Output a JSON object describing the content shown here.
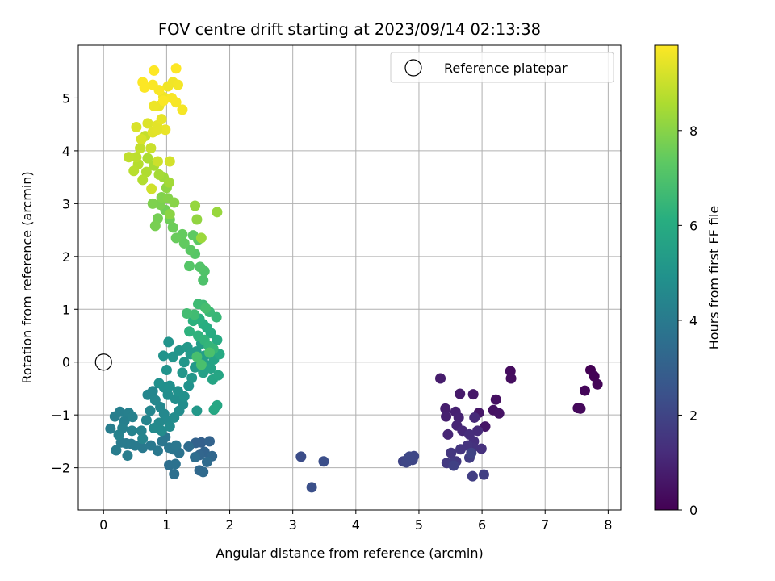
{
  "chart_data": {
    "type": "scatter",
    "title": "FOV centre drift starting at 2023/09/14 02:13:38",
    "xlabel": "Angular distance from reference (arcmin)",
    "ylabel": "Rotation from reference (arcmin)",
    "xlim": [
      -0.4,
      8.2
    ],
    "ylim": [
      -2.8,
      6.0
    ],
    "xticks": [
      0,
      1,
      2,
      3,
      4,
      5,
      6,
      7,
      8
    ],
    "yticks": [
      -2,
      -1,
      0,
      1,
      2,
      3,
      4,
      5
    ],
    "grid": true,
    "legend": {
      "position": "top-right",
      "label": "Reference platepar"
    },
    "reference_point": {
      "x": 0,
      "y": 0
    },
    "colorbar": {
      "label": "Hours from first FF file",
      "colormap": "viridis",
      "range": [
        0,
        9.8
      ],
      "ticks": [
        0,
        2,
        4,
        6,
        8
      ]
    },
    "series": [
      {
        "points": [
          [
            7.72,
            -0.15,
            0.0
          ],
          [
            7.78,
            -0.27,
            0.05
          ],
          [
            7.83,
            -0.42,
            0.1
          ],
          [
            7.63,
            -0.54,
            0.15
          ],
          [
            7.52,
            -0.87,
            0.2
          ],
          [
            7.56,
            -0.88,
            0.22
          ],
          [
            6.45,
            -0.17,
            0.3
          ],
          [
            6.46,
            -0.31,
            0.35
          ],
          [
            6.22,
            -0.71,
            0.4
          ],
          [
            6.18,
            -0.91,
            0.45
          ],
          [
            6.27,
            -0.97,
            0.5
          ],
          [
            6.05,
            -1.22,
            0.55
          ],
          [
            5.95,
            -0.96,
            0.6
          ],
          [
            5.86,
            -0.61,
            0.65
          ],
          [
            5.65,
            -0.6,
            0.7
          ],
          [
            5.34,
            -0.31,
            0.75
          ],
          [
            5.42,
            -0.88,
            0.8
          ],
          [
            5.43,
            -1.03,
            0.85
          ],
          [
            5.58,
            -0.94,
            0.9
          ],
          [
            5.63,
            -1.05,
            0.95
          ],
          [
            5.6,
            -1.2,
            1.0
          ],
          [
            5.46,
            -1.37,
            1.05
          ],
          [
            5.69,
            -1.3,
            1.1
          ],
          [
            5.88,
            -1.05,
            1.15
          ],
          [
            5.93,
            -1.3,
            1.2
          ],
          [
            5.8,
            -1.37,
            1.25
          ],
          [
            5.87,
            -1.5,
            1.3
          ],
          [
            5.99,
            -1.64,
            1.35
          ],
          [
            5.85,
            -1.62,
            1.4
          ],
          [
            5.77,
            -1.58,
            1.45
          ],
          [
            5.66,
            -1.65,
            1.5
          ],
          [
            5.51,
            -1.72,
            1.55
          ],
          [
            5.59,
            -1.88,
            1.6
          ],
          [
            5.44,
            -1.91,
            1.65
          ],
          [
            5.53,
            -1.91,
            1.7
          ],
          [
            5.8,
            -1.81,
            1.75
          ],
          [
            5.85,
            -2.16,
            1.8
          ],
          [
            6.03,
            -2.13,
            1.85
          ],
          [
            5.55,
            -1.96,
            1.9
          ],
          [
            5.83,
            -1.72,
            1.95
          ],
          [
            4.75,
            -1.88,
            2.0
          ],
          [
            4.83,
            -1.82,
            2.02
          ],
          [
            4.9,
            -1.85,
            2.05
          ],
          [
            4.8,
            -1.9,
            2.08
          ],
          [
            4.92,
            -1.78,
            2.1
          ],
          [
            4.85,
            -1.79,
            2.12
          ],
          [
            3.13,
            -1.79,
            2.3
          ],
          [
            3.49,
            -1.88,
            2.35
          ],
          [
            3.3,
            -2.37,
            2.4
          ],
          [
            1.55,
            -1.52,
            3.0
          ],
          [
            1.46,
            -1.53,
            3.05
          ],
          [
            1.68,
            -1.5,
            3.1
          ],
          [
            1.6,
            -1.7,
            3.15
          ],
          [
            1.52,
            -1.76,
            3.2
          ],
          [
            1.72,
            -1.78,
            3.25
          ],
          [
            1.52,
            -2.05,
            3.3
          ],
          [
            1.58,
            -2.08,
            3.35
          ],
          [
            1.64,
            -1.89,
            3.4
          ],
          [
            1.35,
            -1.6,
            3.45
          ],
          [
            1.45,
            -1.8,
            3.5
          ],
          [
            1.04,
            -1.95,
            3.55
          ],
          [
            1.12,
            -2.12,
            3.6
          ],
          [
            1.14,
            -1.93,
            3.65
          ],
          [
            1.2,
            -1.72,
            3.7
          ],
          [
            1.1,
            -1.65,
            3.75
          ],
          [
            0.98,
            -1.42,
            3.8
          ],
          [
            0.93,
            -1.5,
            3.82
          ],
          [
            1.04,
            -1.62,
            3.85
          ],
          [
            1.15,
            -1.58,
            3.88
          ],
          [
            0.86,
            -1.68,
            3.9
          ],
          [
            0.75,
            -1.58,
            3.92
          ],
          [
            0.62,
            -1.62,
            3.95
          ],
          [
            0.44,
            -1.55,
            3.98
          ],
          [
            0.5,
            -1.58,
            4.0
          ],
          [
            0.36,
            -1.54,
            4.02
          ],
          [
            0.28,
            -1.52,
            4.05
          ],
          [
            0.2,
            -1.67,
            4.08
          ],
          [
            0.38,
            -1.77,
            4.1
          ],
          [
            0.11,
            -1.26,
            4.12
          ],
          [
            0.18,
            -1.03,
            4.15
          ],
          [
            0.26,
            -0.94,
            4.18
          ],
          [
            0.33,
            -1.12,
            4.2
          ],
          [
            0.4,
            -0.96,
            4.22
          ],
          [
            0.46,
            -1.04,
            4.25
          ],
          [
            0.3,
            -1.25,
            4.28
          ],
          [
            0.24,
            -1.38,
            4.3
          ],
          [
            0.45,
            -1.3,
            4.32
          ],
          [
            0.6,
            -1.3,
            4.35
          ],
          [
            0.62,
            -1.45,
            4.38
          ],
          [
            0.68,
            -1.1,
            4.4
          ],
          [
            0.74,
            -0.92,
            4.42
          ],
          [
            0.7,
            -0.62,
            4.45
          ],
          [
            0.78,
            -0.55,
            4.48
          ],
          [
            0.82,
            -0.72,
            4.5
          ],
          [
            0.9,
            -0.85,
            4.52
          ],
          [
            0.96,
            -0.98,
            4.55
          ],
          [
            1.0,
            -1.1,
            4.58
          ],
          [
            0.88,
            -1.15,
            4.6
          ],
          [
            0.8,
            -1.25,
            4.62
          ],
          [
            0.92,
            -1.3,
            4.65
          ],
          [
            1.05,
            -1.22,
            4.68
          ],
          [
            1.12,
            -1.05,
            4.7
          ],
          [
            1.2,
            -0.92,
            4.72
          ],
          [
            1.26,
            -0.8,
            4.75
          ],
          [
            1.14,
            -0.7,
            4.78
          ],
          [
            1.02,
            -0.62,
            4.8
          ],
          [
            0.96,
            -0.48,
            4.82
          ],
          [
            0.88,
            -0.4,
            4.85
          ],
          [
            1.05,
            -0.45,
            4.88
          ],
          [
            1.18,
            -0.55,
            4.9
          ],
          [
            1.28,
            -0.65,
            4.92
          ],
          [
            1.35,
            -0.45,
            4.95
          ],
          [
            1.0,
            -0.15,
            4.98
          ],
          [
            0.95,
            0.12,
            5.0
          ],
          [
            1.03,
            0.38,
            5.02
          ],
          [
            1.1,
            0.1,
            5.05
          ],
          [
            1.2,
            0.22,
            5.08
          ],
          [
            1.28,
            0.0,
            5.1
          ],
          [
            1.25,
            -0.2,
            5.12
          ],
          [
            1.4,
            -0.3,
            5.15
          ],
          [
            1.48,
            -0.92,
            5.18
          ],
          [
            1.33,
            0.28,
            5.2
          ],
          [
            1.38,
            0.15,
            5.22
          ],
          [
            1.45,
            -0.1,
            5.25
          ],
          [
            1.52,
            0.05,
            5.28
          ],
          [
            1.47,
            0.2,
            5.3
          ],
          [
            1.55,
            0.35,
            5.4
          ],
          [
            1.6,
            0.12,
            5.45
          ],
          [
            1.62,
            -0.05,
            5.5
          ],
          [
            1.58,
            -0.2,
            5.55
          ],
          [
            1.7,
            -0.12,
            5.6
          ],
          [
            1.75,
            0.05,
            5.65
          ],
          [
            1.73,
            -0.33,
            5.7
          ],
          [
            1.82,
            -0.25,
            5.75
          ],
          [
            1.8,
            -0.82,
            5.8
          ],
          [
            1.75,
            -0.9,
            5.85
          ],
          [
            1.84,
            0.15,
            5.9
          ],
          [
            1.8,
            0.42,
            5.95
          ],
          [
            1.7,
            0.55,
            6.0
          ],
          [
            1.64,
            0.65,
            6.05
          ],
          [
            1.58,
            0.72,
            6.1
          ],
          [
            1.52,
            0.82,
            6.15
          ],
          [
            1.42,
            0.78,
            6.2
          ],
          [
            1.36,
            0.58,
            6.25
          ],
          [
            1.5,
            0.5,
            6.3
          ],
          [
            1.6,
            0.42,
            6.35
          ],
          [
            1.67,
            0.3,
            6.4
          ],
          [
            1.74,
            0.25,
            6.45
          ],
          [
            1.79,
            0.85,
            6.5
          ],
          [
            1.68,
            0.95,
            6.55
          ],
          [
            1.58,
            1.08,
            6.6
          ],
          [
            1.5,
            1.1,
            6.65
          ],
          [
            1.44,
            0.9,
            6.7
          ],
          [
            1.32,
            0.92,
            6.75
          ],
          [
            1.62,
            1.02,
            6.8
          ],
          [
            1.48,
            0.1,
            6.85
          ],
          [
            1.55,
            -0.05,
            6.9
          ],
          [
            1.68,
            0.18,
            6.95
          ],
          [
            1.58,
            1.55,
            7.0
          ],
          [
            1.6,
            1.72,
            7.05
          ],
          [
            1.53,
            1.8,
            7.1
          ],
          [
            1.36,
            1.82,
            7.15
          ],
          [
            1.45,
            2.05,
            7.2
          ],
          [
            1.38,
            2.12,
            7.25
          ],
          [
            1.5,
            2.32,
            7.3
          ],
          [
            1.42,
            2.4,
            7.35
          ],
          [
            1.28,
            2.25,
            7.4
          ],
          [
            1.25,
            2.42,
            7.45
          ],
          [
            1.15,
            2.35,
            7.5
          ],
          [
            1.1,
            2.55,
            7.55
          ],
          [
            1.05,
            2.7,
            7.6
          ],
          [
            0.98,
            2.88,
            7.65
          ],
          [
            0.86,
            2.72,
            7.7
          ],
          [
            0.82,
            2.58,
            7.75
          ],
          [
            0.9,
            2.98,
            7.8
          ],
          [
            0.78,
            3.0,
            7.85
          ],
          [
            0.92,
            3.12,
            7.9
          ],
          [
            1.02,
            3.1,
            7.95
          ],
          [
            1.12,
            3.02,
            8.0
          ],
          [
            1.05,
            2.8,
            8.05
          ],
          [
            1.0,
            3.3,
            8.1
          ],
          [
            1.48,
            2.7,
            8.15
          ],
          [
            1.45,
            2.96,
            8.2
          ],
          [
            1.8,
            2.84,
            8.25
          ],
          [
            1.55,
            2.35,
            8.3
          ],
          [
            0.95,
            3.5,
            8.35
          ],
          [
            1.04,
            3.4,
            8.4
          ],
          [
            0.88,
            3.55,
            8.45
          ],
          [
            0.8,
            3.72,
            8.5
          ],
          [
            0.7,
            3.86,
            8.55
          ],
          [
            0.68,
            3.6,
            8.6
          ],
          [
            0.62,
            3.45,
            8.65
          ],
          [
            0.55,
            3.75,
            8.7
          ],
          [
            0.48,
            3.62,
            8.75
          ],
          [
            0.52,
            3.88,
            8.8
          ],
          [
            0.4,
            3.88,
            8.85
          ],
          [
            0.58,
            4.05,
            8.9
          ],
          [
            0.66,
            4.28,
            8.95
          ],
          [
            0.75,
            4.05,
            9.0
          ],
          [
            0.86,
            3.8,
            9.05
          ],
          [
            0.76,
            3.28,
            9.1
          ],
          [
            1.05,
            3.8,
            9.15
          ],
          [
            0.6,
            4.22,
            9.2
          ],
          [
            0.52,
            4.45,
            9.25
          ],
          [
            0.7,
            4.52,
            9.3
          ],
          [
            0.78,
            4.35,
            9.35
          ],
          [
            0.85,
            4.48,
            9.4
          ],
          [
            0.92,
            4.6,
            9.45
          ],
          [
            0.98,
            4.4,
            9.5
          ],
          [
            0.88,
            4.85,
            9.52
          ],
          [
            0.8,
            4.85,
            9.55
          ],
          [
            0.95,
            5.02,
            9.58
          ],
          [
            1.02,
            5.22,
            9.6
          ],
          [
            1.1,
            5.3,
            9.62
          ],
          [
            1.18,
            5.25,
            9.65
          ],
          [
            1.25,
            4.78,
            9.68
          ],
          [
            1.15,
            4.92,
            9.7
          ],
          [
            1.08,
            5.0,
            9.72
          ],
          [
            0.88,
            5.15,
            9.74
          ],
          [
            0.78,
            5.25,
            9.76
          ],
          [
            0.62,
            5.3,
            9.78
          ],
          [
            0.65,
            5.2,
            9.79
          ],
          [
            0.8,
            5.52,
            9.8
          ],
          [
            1.15,
            5.56,
            9.8
          ],
          [
            0.95,
            4.95,
            9.75
          ],
          [
            0.85,
            4.4,
            9.4
          ]
        ]
      }
    ]
  }
}
